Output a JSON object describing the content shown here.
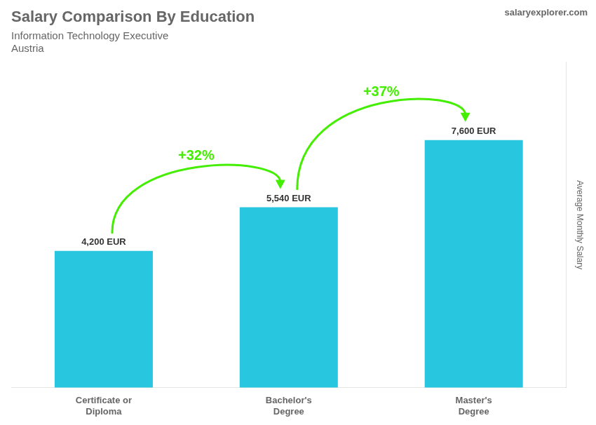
{
  "chart_data": {
    "type": "bar",
    "title": "Salary Comparison By Education",
    "subtitle": [
      "Information Technology Executive",
      "Austria"
    ],
    "categories": [
      "Certificate or\nDiploma",
      "Bachelor's\nDegree",
      "Master's\nDegree"
    ],
    "values": [
      4200,
      5540,
      7600
    ],
    "value_labels": [
      "4,200 EUR",
      "5,540 EUR",
      "7,600 EUR"
    ],
    "data_labels": true,
    "color": "#29c6e0",
    "ylabel": "Average Monthly Salary",
    "ylim": [
      0,
      10000
    ],
    "grid": false,
    "tick_labels": "x",
    "annotations": [
      {
        "text": "+32%",
        "from": "Certificate or\nDiploma",
        "to": "Bachelor's\nDegree",
        "color": "#44ee00"
      },
      {
        "text": "+37%",
        "from": "Bachelor's\nDegree",
        "to": "Master's\nDegree",
        "color": "#44ee00"
      },
      {
        "text": "salaryexplorer.com"
      }
    ]
  }
}
